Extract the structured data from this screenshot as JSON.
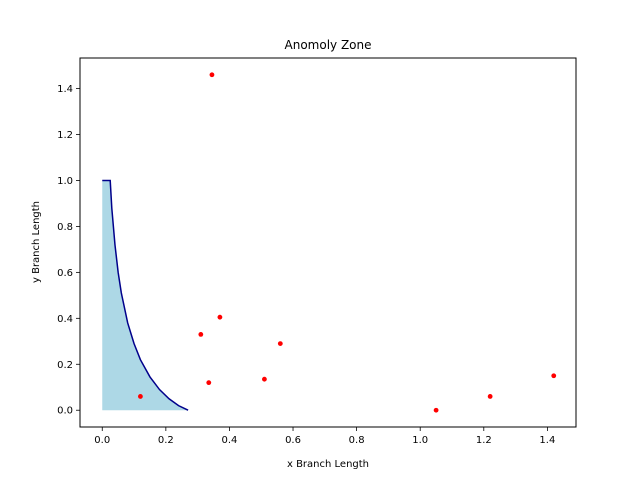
{
  "chart_data": {
    "type": "scatter",
    "title": "Anomoly Zone",
    "xlabel": "x Branch Length",
    "ylabel": "y Branch Length",
    "xlim": [
      -0.07,
      1.49
    ],
    "ylim": [
      -0.073,
      1.533
    ],
    "xticks": [
      0.0,
      0.2,
      0.4,
      0.6,
      0.8,
      1.0,
      1.2,
      1.4
    ],
    "xtick_labels": [
      "0.0",
      "0.2",
      "0.4",
      "0.6",
      "0.8",
      "1.0",
      "1.2",
      "1.4"
    ],
    "yticks": [
      0.0,
      0.2,
      0.4,
      0.6,
      0.8,
      1.0,
      1.2,
      1.4
    ],
    "ytick_labels": [
      "0.0",
      "0.2",
      "0.4",
      "0.6",
      "0.8",
      "1.0",
      "1.2",
      "1.4"
    ],
    "grid": false,
    "zone": {
      "fill_color": "#add8e6",
      "line_color": "#00008b",
      "boundary_x": [
        0.0,
        0.025,
        0.03,
        0.04,
        0.05,
        0.06,
        0.08,
        0.1,
        0.12,
        0.15,
        0.18,
        0.21,
        0.24,
        0.27
      ],
      "boundary_y": [
        1.0,
        1.0,
        0.88,
        0.72,
        0.6,
        0.51,
        0.38,
        0.29,
        0.22,
        0.145,
        0.09,
        0.05,
        0.02,
        0.0
      ]
    },
    "points": {
      "color": "#ff0000",
      "x": [
        0.12,
        0.345,
        0.31,
        0.37,
        0.335,
        0.51,
        0.56,
        1.05,
        1.22,
        1.42
      ],
      "y": [
        0.06,
        1.46,
        0.33,
        0.405,
        0.12,
        0.135,
        0.29,
        0.0,
        0.06,
        0.15
      ]
    }
  }
}
